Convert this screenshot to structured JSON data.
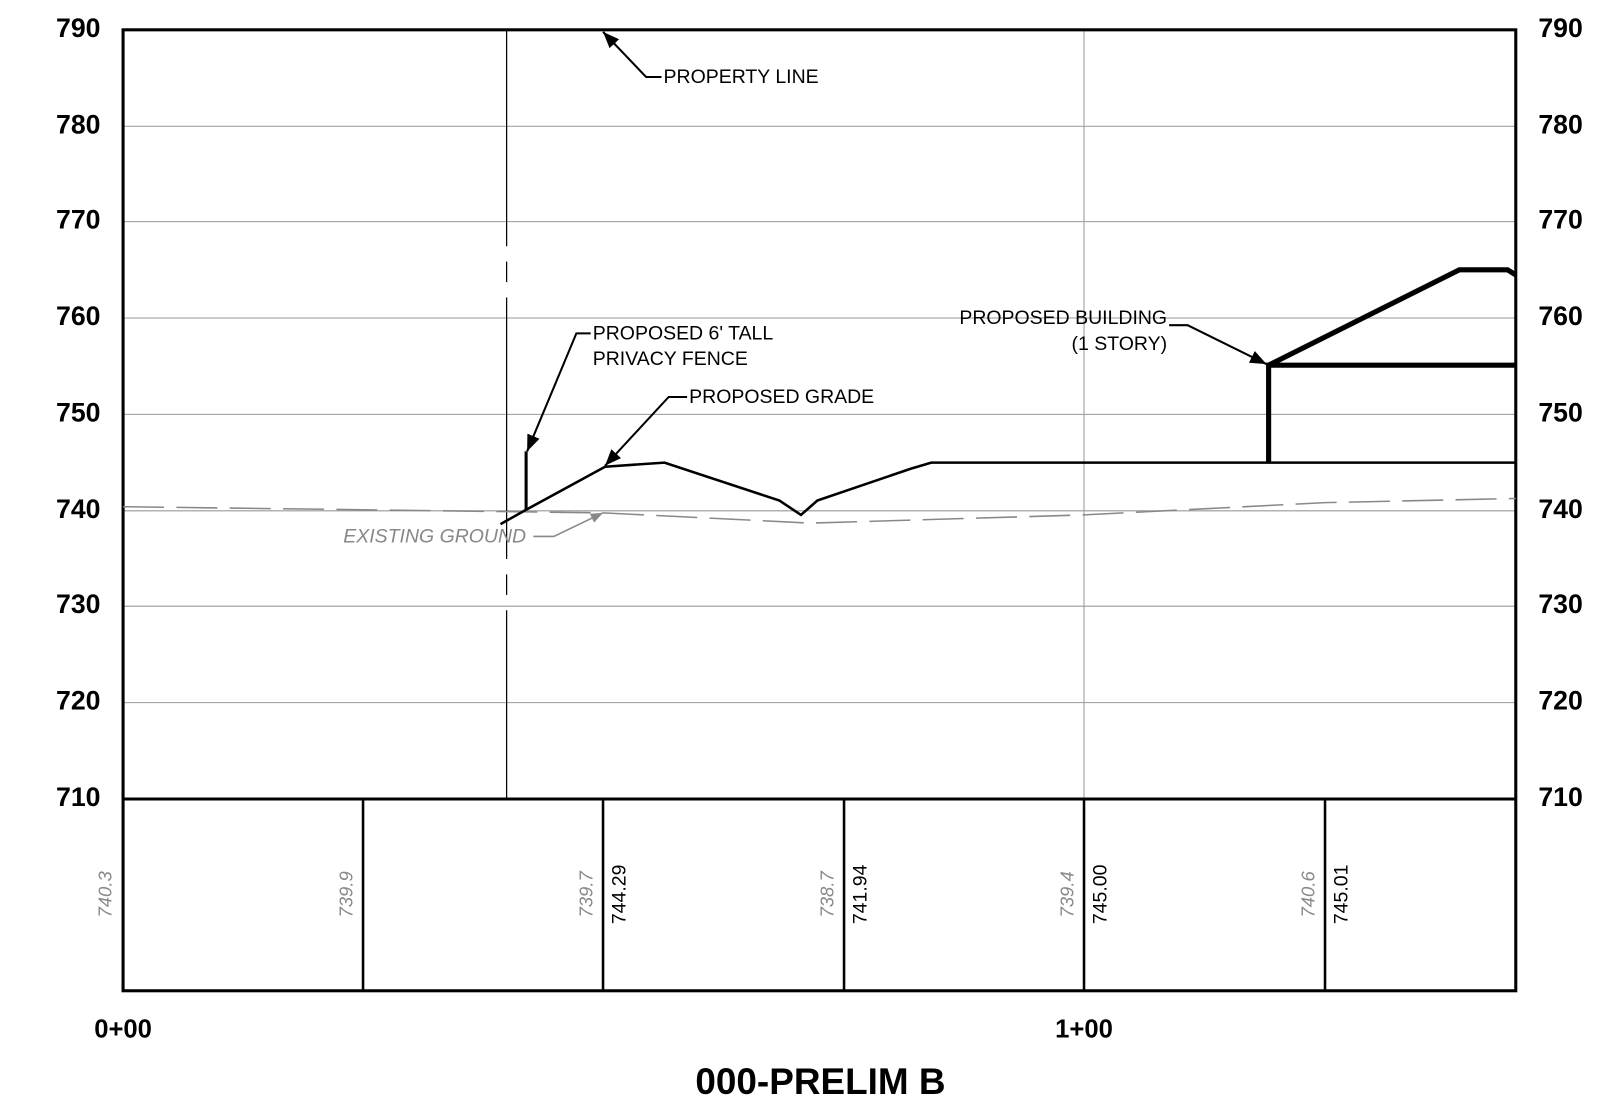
{
  "axis": {
    "left_ticks": [
      "790",
      "780",
      "770",
      "760",
      "750",
      "740",
      "730",
      "720",
      "710"
    ],
    "right_ticks": [
      "790",
      "780",
      "770",
      "760",
      "750",
      "740",
      "730",
      "720",
      "710"
    ]
  },
  "stations": [
    "0+00",
    "1+00"
  ],
  "title": "000-PRELIM B",
  "annotations": {
    "property_line": "PROPERTY LINE",
    "fence": [
      "PROPOSED 6' TALL",
      "PRIVACY FENCE"
    ],
    "grade": "PROPOSED GRADE",
    "building": [
      "PROPOSED BUILDING",
      "(1 STORY)"
    ],
    "existing": "EXISTING GROUND"
  },
  "existing_elevations": [
    "740.3",
    "739.9",
    "739.7",
    "738.7",
    "739.4",
    "740.6"
  ],
  "proposed_elevations": [
    "744.29",
    "741.94",
    "745.00",
    "745.01"
  ]
}
